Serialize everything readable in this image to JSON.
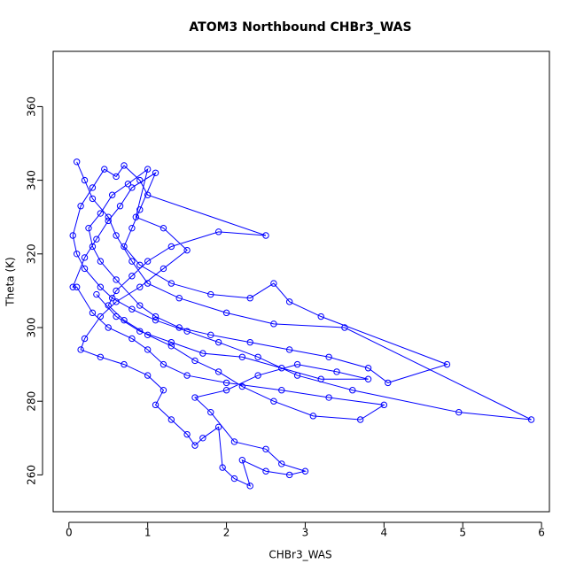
{
  "chart_data": {
    "type": "line",
    "markers": true,
    "title": "ATOM3 Northbound CHBr3_WAS",
    "x_label": "CHBr3_WAS",
    "y_label": "Theta (K)",
    "xlim": [
      -0.2,
      6.1
    ],
    "ylim": [
      250,
      375
    ],
    "xticks": [
      0,
      1,
      2,
      3,
      4,
      5,
      6
    ],
    "yticks": [
      260,
      280,
      300,
      320,
      340,
      360
    ],
    "color": "#0000ff",
    "x": [
      0.1,
      0.2,
      0.3,
      0.5,
      0.6,
      0.8,
      1.0,
      1.4,
      2.0,
      2.6,
      3.5,
      5.87,
      4.95,
      3.6,
      2.9,
      2.4,
      1.9,
      1.5,
      1.1,
      0.8,
      0.55,
      0.4,
      0.2,
      0.1,
      0.05,
      0.15,
      0.3,
      0.45,
      0.6,
      0.7,
      0.9,
      1.0,
      2.5,
      1.9,
      1.3,
      1.0,
      0.8,
      0.6,
      0.5,
      0.7,
      1.0,
      1.3,
      1.6,
      1.9,
      2.2,
      2.6,
      3.1,
      3.7,
      4.0,
      3.3,
      2.7,
      2.0,
      1.5,
      1.2,
      1.0,
      0.8,
      0.5,
      0.3,
      0.1,
      0.05,
      0.2,
      0.35,
      0.5,
      0.65,
      0.8,
      1.1,
      0.9,
      0.8,
      0.7,
      0.9,
      1.3,
      1.8,
      2.3,
      2.6,
      2.8,
      3.2,
      4.8,
      4.05,
      3.8,
      3.3,
      2.8,
      2.3,
      1.8,
      1.4,
      1.1,
      0.9,
      0.6,
      0.4,
      0.3,
      0.25,
      0.4,
      0.55,
      0.75,
      1.0,
      0.85,
      1.2,
      1.5,
      1.2,
      0.9,
      0.6,
      0.4,
      0.2,
      0.15,
      0.4,
      0.7,
      1.0,
      1.2,
      1.1,
      1.3,
      1.5,
      1.6,
      1.7,
      1.9,
      1.95,
      2.1,
      2.3,
      2.2,
      2.5,
      2.8,
      3.0,
      2.7,
      2.5,
      2.1,
      1.8,
      1.6,
      2.0,
      2.4,
      2.9,
      3.4,
      3.8,
      3.2,
      2.7,
      2.2,
      1.7,
      1.3,
      0.9,
      0.6,
      0.35
    ],
    "y": [
      345,
      340,
      335,
      330,
      325,
      318,
      312,
      308,
      304,
      301,
      300,
      275,
      277,
      283,
      287,
      292,
      296,
      299,
      302,
      305,
      308,
      311,
      316,
      320,
      325,
      333,
      338,
      343,
      341,
      344,
      340,
      336,
      325,
      326,
      322,
      318,
      314,
      310,
      306,
      302,
      298,
      295,
      291,
      288,
      284,
      280,
      276,
      275,
      279,
      281,
      283,
      285,
      287,
      290,
      294,
      297,
      300,
      304,
      311,
      311,
      319,
      324,
      329,
      333,
      338,
      342,
      332,
      327,
      322,
      317,
      312,
      309,
      308,
      312,
      307,
      303,
      290,
      285,
      289,
      292,
      294,
      296,
      298,
      300,
      303,
      306,
      313,
      318,
      322,
      327,
      331,
      336,
      339,
      343,
      330,
      327,
      321,
      316,
      311,
      307,
      303,
      297,
      294,
      292,
      290,
      287,
      283,
      279,
      275,
      271,
      268,
      270,
      273,
      262,
      259,
      257,
      264,
      261,
      260,
      261,
      263,
      267,
      269,
      277,
      281,
      283,
      287,
      290,
      288,
      286,
      286,
      289,
      292,
      293,
      296,
      299,
      303,
      309
    ]
  }
}
